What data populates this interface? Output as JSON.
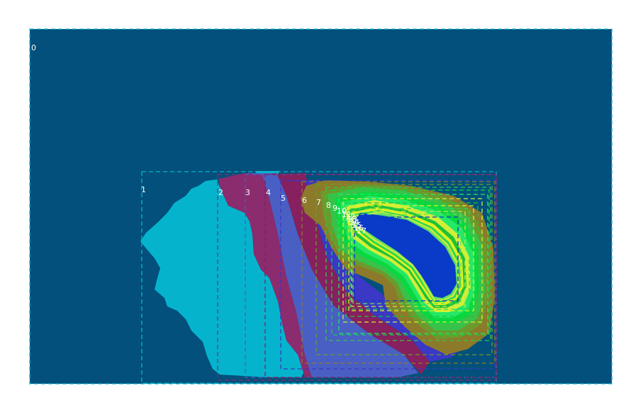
{
  "colors": {
    "page_bg": "#ffffff",
    "region_0": "#02507b",
    "region_1": "#05b4cc",
    "region_2": "#8a2c6e",
    "region_3": "#4a5fc4",
    "region_4": "#86205e",
    "region_5": "#3a38c4",
    "region_6": "#8c7a2a",
    "region_7": "#6c9a2c",
    "region_8": "#38c24a",
    "region_9": "#0ad840",
    "region_10": "#24e866",
    "region_11": "#d2ee38",
    "region_12": "#1ec238",
    "region_13": "#e0f020",
    "region_14": "#2ad850",
    "region_15": "#c2ec40",
    "region_16": "#62e060",
    "region_17": "#0a3ac8",
    "label_text": "#ffffff"
  },
  "regions": [
    {
      "id": "0",
      "label": "0"
    },
    {
      "id": "1",
      "label": "1"
    },
    {
      "id": "2",
      "label": "2"
    },
    {
      "id": "3",
      "label": "3"
    },
    {
      "id": "4",
      "label": "4"
    },
    {
      "id": "5",
      "label": "5"
    },
    {
      "id": "6",
      "label": "6"
    },
    {
      "id": "7",
      "label": "7"
    },
    {
      "id": "8",
      "label": "8"
    },
    {
      "id": "9",
      "label": "9"
    },
    {
      "id": "10",
      "label": "10"
    },
    {
      "id": "11",
      "label": "11"
    },
    {
      "id": "12",
      "label": "12"
    },
    {
      "id": "13",
      "label": "13"
    },
    {
      "id": "14",
      "label": "14"
    },
    {
      "id": "15",
      "label": "15"
    },
    {
      "id": "16",
      "label": "16"
    },
    {
      "id": "17",
      "label": "17"
    }
  ]
}
